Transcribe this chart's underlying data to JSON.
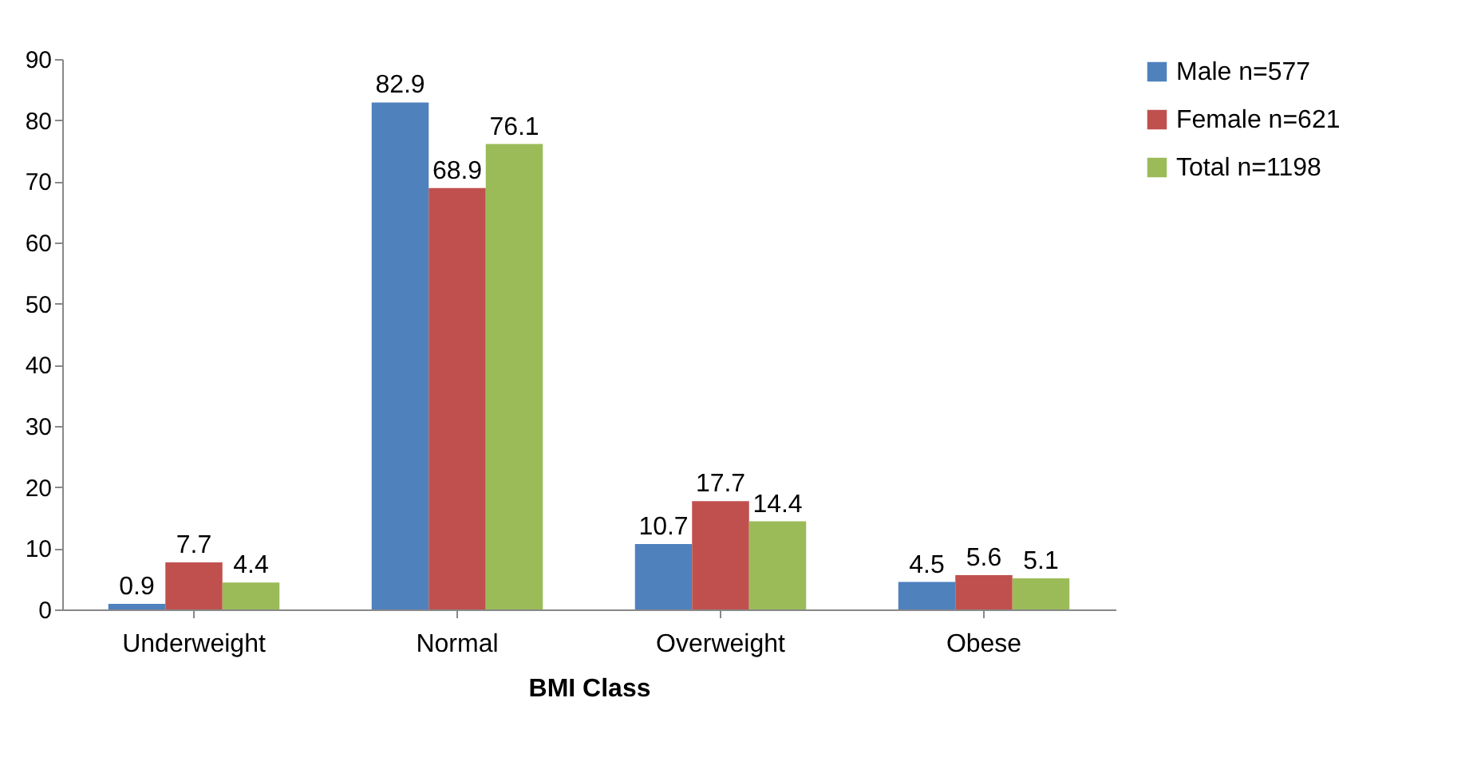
{
  "chart_data": {
    "type": "bar",
    "xlabel": "BMI Class",
    "categories": [
      "Underweight",
      "Normal",
      "Overweight",
      "Obese"
    ],
    "series": [
      {
        "name": "Male n=577",
        "color": "#4f81bd",
        "values": [
          0.9,
          82.9,
          10.7,
          4.5
        ]
      },
      {
        "name": "Female n=621",
        "color": "#c0504d",
        "values": [
          7.7,
          68.9,
          17.7,
          5.6
        ]
      },
      {
        "name": "Total n=1198",
        "color": "#9bbb59",
        "values": [
          4.4,
          76.1,
          14.4,
          5.1
        ]
      }
    ],
    "ylim": [
      0,
      90
    ],
    "yticks": [
      0,
      10,
      20,
      30,
      40,
      50,
      60,
      70,
      80,
      90
    ],
    "data_labels": true,
    "grid": false,
    "legend": "right"
  }
}
